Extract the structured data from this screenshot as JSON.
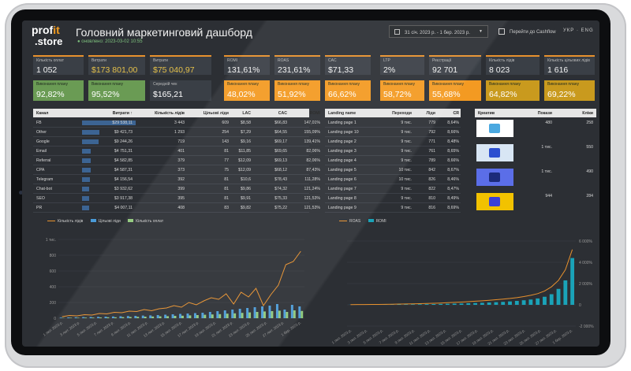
{
  "brand": {
    "prefix": "prof",
    "accent": "it",
    "suffix": ".store"
  },
  "header": {
    "title": "Головний маркетинговий дашборд",
    "updated": "оновлено: 2023-03-02 10:55",
    "date_range": "31 січ. 2023 р. - 1 бер. 2023 р.",
    "cashflow_label": "Перейти до Cashflow",
    "lang_ukr": "УКР",
    "lang_eng": "ENG"
  },
  "kpis": [
    {
      "label": "Кількість оплат",
      "value": "1 052",
      "plan_label": "Виконання плану",
      "plan_value": "92,82%",
      "plan_color": "green"
    },
    {
      "label": "Витрати",
      "value": "$173 801,00",
      "plan_label": "Виконання плану",
      "plan_value": "95,52%",
      "plan_color": "green"
    },
    {
      "label": "Витрати",
      "value": "$75 040,97",
      "plan_label": "Середній чек",
      "plan_value": "$165,21",
      "plan_color": "dark"
    },
    {
      "label": "ROMI",
      "value": "131,61%",
      "plan_label": "Виконання плану",
      "plan_value": "48,02%",
      "plan_color": "orange"
    },
    {
      "label": "ROAS",
      "value": "231,61%",
      "plan_label": "Виконання плану",
      "plan_value": "51,92%",
      "plan_color": "orange"
    },
    {
      "label": "CAC",
      "value": "$71,33",
      "plan_label": "Виконання плану",
      "plan_value": "66,62%",
      "plan_color": "orange"
    },
    {
      "label": "LTP",
      "value": "2%",
      "plan_label": "Виконання плану",
      "plan_value": "58,72%",
      "plan_color": "orange"
    },
    {
      "label": "Реєстрації",
      "value": "92 701",
      "plan_label": "Виконання плану",
      "plan_value": "55,68%",
      "plan_color": "orange"
    },
    {
      "label": "Кількість лідів",
      "value": "8 023",
      "plan_label": "Виконання плану",
      "plan_value": "64,82%",
      "plan_color": "gold"
    },
    {
      "label": "Кількість цільових лідів",
      "value": "1 616",
      "plan_label": "Виконання плану",
      "plan_value": "69,22%",
      "plan_color": "gold"
    }
  ],
  "channels_table": {
    "headers": [
      "Канал",
      "Витрати ↑",
      "Кількість лідів",
      "Цільові ліди",
      "LAC",
      "CAC",
      "ROMI"
    ],
    "rows": [
      [
        "FB",
        "$29 538,11",
        "3 443",
        "609",
        "$8,58",
        "$66,83",
        "147,01%"
      ],
      [
        "Other",
        "$9 421,73",
        "1 293",
        "254",
        "$7,29",
        "$64,55",
        "155,09%"
      ],
      [
        "Google",
        "$9 244,26",
        "719",
        "143",
        "$9,16",
        "$69,17",
        "139,41%"
      ],
      [
        "Email",
        "$4 751,31",
        "401",
        "81",
        "$11,85",
        "$69,65",
        "82,06%"
      ],
      [
        "Referral",
        "$4 582,85",
        "379",
        "77",
        "$12,09",
        "$69,13",
        "82,06%"
      ],
      [
        "CPA",
        "$4 587,31",
        "373",
        "75",
        "$12,09",
        "$68,12",
        "87,43%"
      ],
      [
        "Telegram",
        "$4 156,54",
        "392",
        "81",
        "$10,6",
        "$78,43",
        "111,28%"
      ],
      [
        "Chat-bot",
        "$3 932,62",
        "399",
        "81",
        "$9,86",
        "$74,32",
        "121,24%"
      ],
      [
        "SEO",
        "$3 917,38",
        "395",
        "81",
        "$9,91",
        "$75,33",
        "121,53%"
      ],
      [
        "PR",
        "$4 007,11",
        "408",
        "83",
        "$9,82",
        "$75,22",
        "121,53%"
      ]
    ],
    "bar_fractions": [
      1.0,
      0.32,
      0.31,
      0.16,
      0.155,
      0.155,
      0.14,
      0.13,
      0.13,
      0.135
    ]
  },
  "landing_table": {
    "headers": [
      "Landing name",
      "Переходи",
      "Ліди",
      "CR"
    ],
    "rows": [
      [
        "Landing page 1",
        "9 тис.",
        "779",
        "8,64%"
      ],
      [
        "Landing page 10",
        "9 тис.",
        "792",
        "8,66%"
      ],
      [
        "Landing page 2",
        "9 тис.",
        "771",
        "8,48%"
      ],
      [
        "Landing page 3",
        "9 тис.",
        "761",
        "8,65%"
      ],
      [
        "Landing page 4",
        "9 тис.",
        "789",
        "8,66%"
      ],
      [
        "Landing page 5",
        "10 тис.",
        "842",
        "8,67%"
      ],
      [
        "Landing page 6",
        "10 тис.",
        "826",
        "8,46%"
      ],
      [
        "Landing page 7",
        "9 тис.",
        "822",
        "8,47%"
      ],
      [
        "Landing page 8",
        "9 тис.",
        "810",
        "8,49%"
      ],
      [
        "Landing page 9",
        "9 тис.",
        "816",
        "8,69%"
      ]
    ]
  },
  "creatives_table": {
    "headers": [
      "Креатив",
      "Покази",
      "Кліки"
    ],
    "rows": [
      {
        "views": "480",
        "clicks": "258",
        "bg": "#ffffff",
        "accent": "#4aa8e0"
      },
      {
        "views": "1 тис.",
        "clicks": "550",
        "bg": "#d8e6f4",
        "accent": "#2b4fd0"
      },
      {
        "views": "1 тис.",
        "clicks": "490",
        "bg": "#5b6ee8",
        "accent": "#1c2b7a"
      },
      {
        "views": "944",
        "clicks": "284",
        "bg": "#f2c200",
        "accent": "#3a3fd8"
      }
    ]
  },
  "left_chart": {
    "legend": [
      "Кількість лідів",
      "Цільові ліди",
      "Кількість оплат"
    ],
    "colors": {
      "leads": "#e8912d",
      "target": "#4a9bd8",
      "payments": "#8fc97a"
    },
    "y_ticks": [
      "1 тис.",
      "800",
      "600",
      "400",
      "200",
      "0"
    ],
    "x_ticks": [
      "1 лют. 2023 р.",
      "3 лют. 2023 р.",
      "5 лют. 2023 р.",
      "7 лют. 2023 р.",
      "9 лют. 2023 р.",
      "11 лют. 2023 р.",
      "13 лют. 2023 р.",
      "15 лют. 2023 р.",
      "17 лют. 2023 р.",
      "19 лют. 2023 р.",
      "21 лют. 2023 р.",
      "23 лют. 2023 р.",
      "25 лют. 2023 р.",
      "27 лют. 2023 р.",
      "1 бер. 2023 р."
    ],
    "leads": [
      20,
      35,
      30,
      45,
      40,
      60,
      55,
      75,
      70,
      90,
      85,
      110,
      95,
      120,
      130,
      160,
      140,
      200,
      170,
      220,
      260,
      240,
      310,
      180,
      330,
      270,
      380,
      160,
      300,
      420,
      680,
      720,
      850
    ],
    "target": [
      8,
      10,
      12,
      14,
      16,
      18,
      20,
      22,
      25,
      28,
      30,
      34,
      36,
      40,
      45,
      50,
      55,
      60,
      65,
      70,
      80,
      90,
      100,
      110,
      120,
      130,
      140,
      150,
      160,
      180,
      110,
      170,
      150
    ],
    "payments": [
      4,
      6,
      6,
      8,
      8,
      10,
      12,
      12,
      14,
      16,
      18,
      20,
      22,
      24,
      26,
      30,
      32,
      36,
      40,
      44,
      48,
      52,
      58,
      62,
      68,
      74,
      80,
      86,
      90,
      96,
      80,
      100,
      92
    ]
  },
  "right_chart": {
    "legend": [
      "ROAS",
      "ROMI"
    ],
    "colors": {
      "roas": "#e8912d",
      "romi": "#1aa3b8"
    },
    "y_ticks": [
      "6 000%",
      "4 000%",
      "2 000%",
      "0",
      "-2 000%"
    ],
    "x_ticks": [
      "1 лют. 2023 р.",
      "3 лют. 2023 р.",
      "5 лют. 2023 р.",
      "7 лют. 2023 р.",
      "9 лют. 2023 р.",
      "11 лют. 2023 р.",
      "13 лют. 2023 р.",
      "15 лют. 2023 р.",
      "17 лют. 2023 р.",
      "19 лют. 2023 р.",
      "21 лют. 2023 р.",
      "23 лют. 2023 р.",
      "25 лют. 2023 р.",
      "27 лют. 2023 р.",
      "1 бер. 2023 р."
    ],
    "roas": [
      20,
      25,
      30,
      35,
      40,
      50,
      60,
      70,
      80,
      95,
      110,
      130,
      150,
      170,
      200,
      230,
      260,
      300,
      340,
      380,
      430,
      480,
      540,
      600,
      680,
      780,
      900,
      1050,
      1300,
      1700,
      2300,
      3300,
      5200
    ],
    "romi": [
      10,
      12,
      15,
      18,
      20,
      25,
      30,
      35,
      40,
      45,
      55,
      65,
      75,
      85,
      100,
      115,
      130,
      150,
      170,
      190,
      220,
      250,
      280,
      320,
      370,
      430,
      500,
      600,
      760,
      1000,
      1500,
      2300,
      4400
    ]
  }
}
